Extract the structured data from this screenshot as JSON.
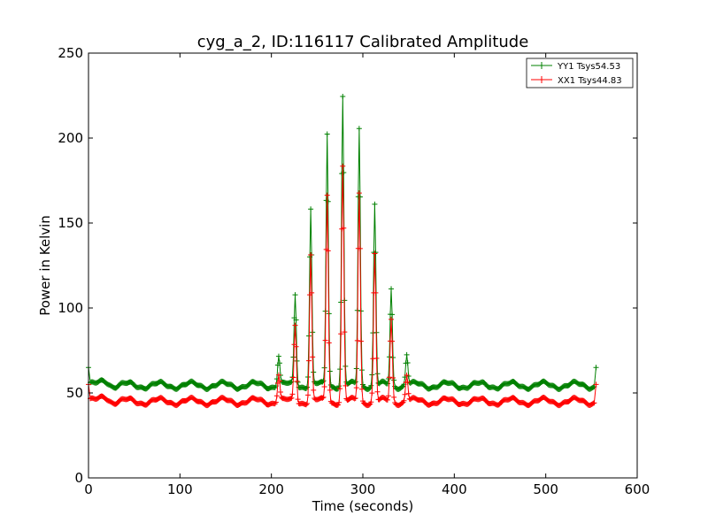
{
  "chart_data": {
    "type": "line",
    "title": "cyg_a_2, ID:116117 Calibrated Amplitude",
    "xlabel": "Time (seconds)",
    "ylabel": "Power in Kelvin",
    "xlim": [
      0,
      600
    ],
    "ylim": [
      0,
      250
    ],
    "xticks": [
      0,
      100,
      200,
      300,
      400,
      500,
      600
    ],
    "yticks": [
      0,
      50,
      100,
      150,
      200,
      250
    ],
    "grid": false,
    "legend_position": "top-right",
    "marker": "plus",
    "series": [
      {
        "name": "YY1 Tsys54.53",
        "color": "#008000",
        "baseline": 54.5,
        "endpoints": [
          [
            0,
            65
          ],
          [
            555,
            65
          ]
        ],
        "peaks": [
          [
            208,
            72
          ],
          [
            226,
            108
          ],
          [
            243,
            158
          ],
          [
            261,
            203
          ],
          [
            278,
            224
          ],
          [
            296,
            206
          ],
          [
            313,
            161
          ],
          [
            331,
            111
          ],
          [
            348,
            73
          ]
        ]
      },
      {
        "name": "XX1 Tsys44.83",
        "color": "#ff0000",
        "baseline": 45,
        "endpoints": [
          [
            0,
            55
          ],
          [
            555,
            55
          ]
        ],
        "peaks": [
          [
            208,
            61
          ],
          [
            226,
            90
          ],
          [
            243,
            131
          ],
          [
            261,
            167
          ],
          [
            278,
            183
          ],
          [
            296,
            168
          ],
          [
            313,
            132
          ],
          [
            331,
            93
          ],
          [
            348,
            61
          ]
        ]
      }
    ]
  }
}
